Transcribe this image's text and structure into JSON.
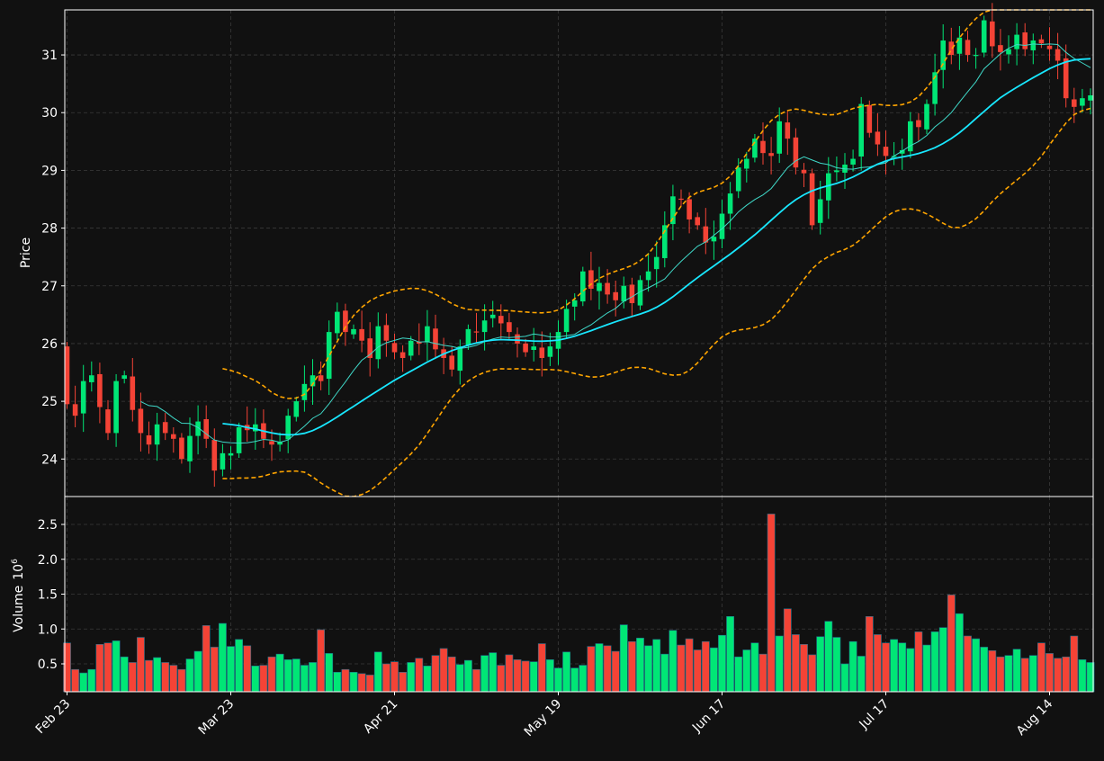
{
  "chart_data": {
    "type": "candlestick",
    "title": "",
    "price_panel": {
      "ylabel": "Price",
      "ylim": [
        23.35,
        31.78
      ],
      "yticks": [
        24,
        25,
        26,
        27,
        28,
        29,
        30,
        31
      ]
    },
    "volume_panel": {
      "ylabel": "Volume",
      "exponent_label": "10",
      "exponent": "6",
      "ylim": [
        0.1,
        2.9
      ],
      "yticks": [
        0.5,
        1.0,
        1.5,
        2.0,
        2.5
      ],
      "ytick_labels": [
        "0.5",
        "1.0",
        "1.5",
        "2.0",
        "2.5"
      ]
    },
    "x_ticks": [
      {
        "index": 0,
        "label": "Feb 23"
      },
      {
        "index": 20,
        "label": "Mar 23"
      },
      {
        "index": 40,
        "label": "Apr 21"
      },
      {
        "index": 60,
        "label": "May 19"
      },
      {
        "index": 80,
        "label": "Jun 17"
      },
      {
        "index": 100,
        "label": "Jul 17"
      },
      {
        "index": 120,
        "label": "Aug 14"
      }
    ],
    "n_candles": 126,
    "closes": [
      24.95,
      24.75,
      25.35,
      25.45,
      24.9,
      24.45,
      25.35,
      25.45,
      24.85,
      24.45,
      24.25,
      24.6,
      24.45,
      24.35,
      24.0,
      24.4,
      24.65,
      24.35,
      23.8,
      24.1,
      24.1,
      24.55,
      24.5,
      24.6,
      24.35,
      24.25,
      24.3,
      24.75,
      25.0,
      25.3,
      25.45,
      25.35,
      26.2,
      26.55,
      26.2,
      26.25,
      26.05,
      25.75,
      26.3,
      26.05,
      25.85,
      25.75,
      26.05,
      26.0,
      26.3,
      25.9,
      25.75,
      25.55,
      25.95,
      26.25,
      26.2,
      26.4,
      26.5,
      26.35,
      26.2,
      26.0,
      25.85,
      25.95,
      25.75,
      25.95,
      26.2,
      26.6,
      26.75,
      27.25,
      26.95,
      27.05,
      26.85,
      26.75,
      27.0,
      26.7,
      27.1,
      27.25,
      27.5,
      28.05,
      28.55,
      28.5,
      28.15,
      28.05,
      27.75,
      27.85,
      28.25,
      28.6,
      29.05,
      29.2,
      29.55,
      29.3,
      29.25,
      29.85,
      29.55,
      29.05,
      28.95,
      28.05,
      28.5,
      28.95,
      29.0,
      29.1,
      29.2,
      30.15,
      29.65,
      29.45,
      29.25,
      29.25,
      29.35,
      29.85,
      29.75,
      30.15,
      30.7,
      31.25,
      31.0,
      31.3,
      31.0,
      31.0,
      31.6,
      31.15,
      31.05,
      31.1,
      31.35,
      31.1,
      31.25,
      31.2,
      31.1,
      30.9,
      30.25,
      30.1,
      30.25,
      30.3
    ],
    "volumes": [
      0.8,
      0.42,
      0.37,
      0.42,
      0.78,
      0.8,
      0.83,
      0.6,
      0.52,
      0.88,
      0.55,
      0.59,
      0.52,
      0.48,
      0.42,
      0.57,
      0.68,
      1.05,
      0.74,
      1.08,
      0.75,
      0.85,
      0.76,
      0.47,
      0.48,
      0.6,
      0.64,
      0.56,
      0.57,
      0.48,
      0.52,
      0.99,
      0.65,
      0.38,
      0.42,
      0.38,
      0.36,
      0.34,
      0.67,
      0.5,
      0.53,
      0.38,
      0.52,
      0.58,
      0.47,
      0.62,
      0.72,
      0.6,
      0.49,
      0.55,
      0.42,
      0.62,
      0.66,
      0.48,
      0.63,
      0.56,
      0.54,
      0.53,
      0.79,
      0.56,
      0.44,
      0.67,
      0.44,
      0.48,
      0.75,
      0.79,
      0.76,
      0.68,
      1.06,
      0.82,
      0.87,
      0.76,
      0.85,
      0.64,
      0.98,
      0.77,
      0.86,
      0.7,
      0.82,
      0.73,
      0.91,
      1.18,
      0.6,
      0.7,
      0.8,
      0.64,
      2.65,
      0.9,
      1.29,
      0.92,
      0.78,
      0.63,
      0.89,
      1.11,
      0.88,
      0.5,
      0.82,
      0.61,
      1.18,
      0.92,
      0.8,
      0.85,
      0.8,
      0.72,
      0.96,
      0.77,
      0.96,
      1.02,
      1.49,
      1.22,
      0.9,
      0.86,
      0.74,
      0.69,
      0.6,
      0.62,
      0.71,
      0.58,
      0.62,
      0.8,
      0.65,
      0.58,
      0.6,
      0.9,
      0.56,
      0.52
    ],
    "up_color": "#00e676",
    "down_color": "#f44336",
    "ma_long_color": "#18e7ff",
    "ma_short_color": "#3fd8c8",
    "band_color": "#ffa500"
  }
}
